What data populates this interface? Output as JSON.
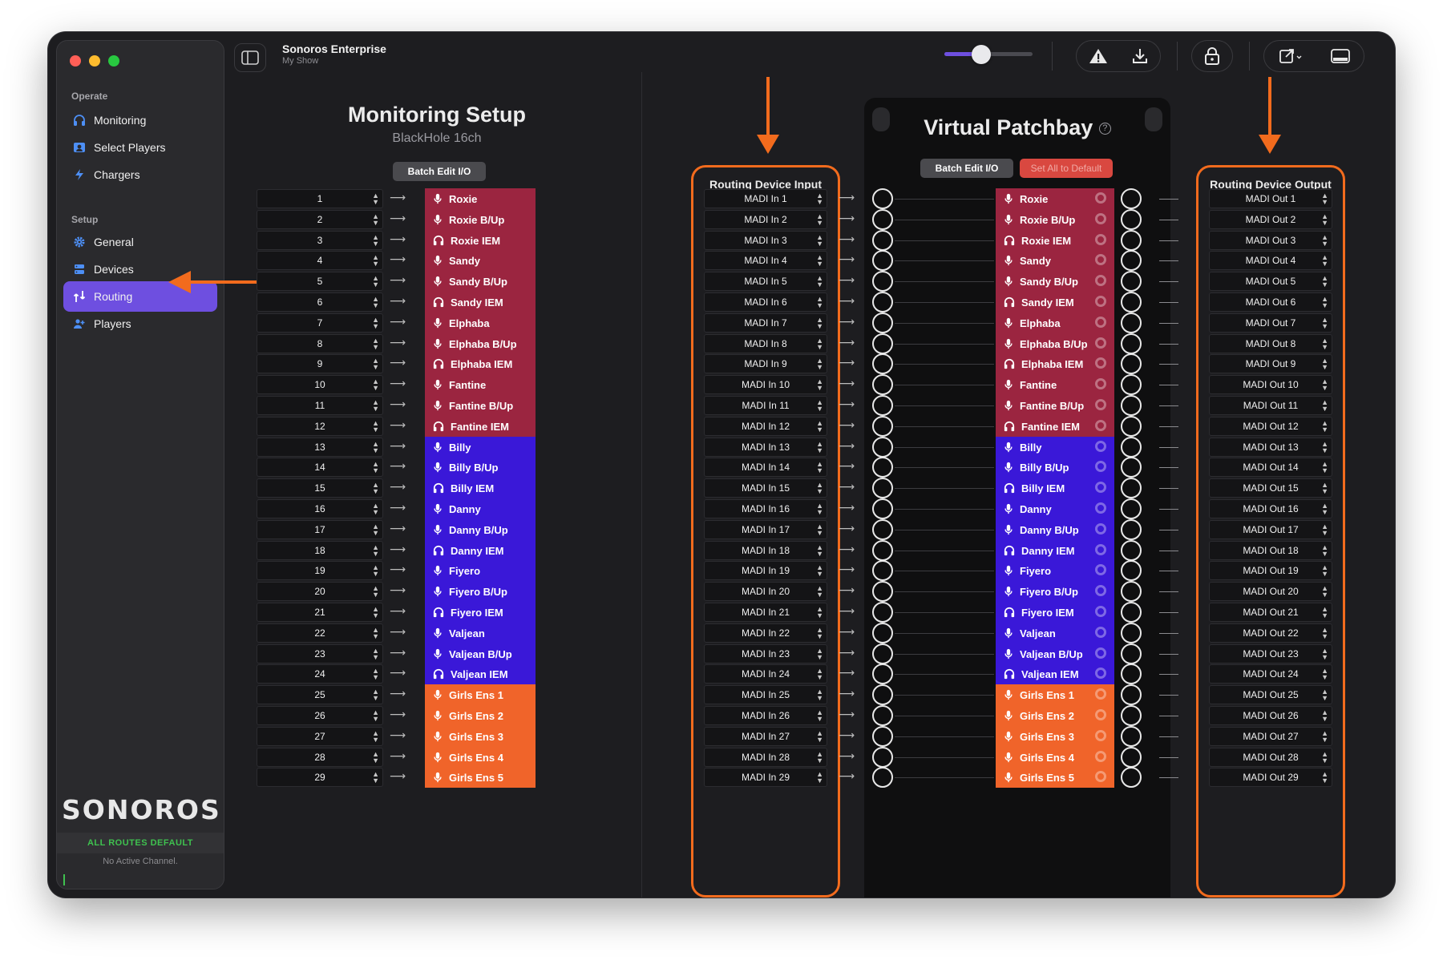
{
  "window": {
    "app_title": "Sonoros Enterprise",
    "app_subtitle": "My Show",
    "volume_level": 0.42
  },
  "sidebar": {
    "operate_title": "Operate",
    "setup_title": "Setup",
    "operate_items": [
      {
        "label": "Monitoring",
        "icon": "headphones-icon"
      },
      {
        "label": "Select Players",
        "icon": "person-card-icon"
      },
      {
        "label": "Chargers",
        "icon": "bolt-icon"
      }
    ],
    "setup_items": [
      {
        "label": "General",
        "icon": "gear-icon"
      },
      {
        "label": "Devices",
        "icon": "server-icon"
      },
      {
        "label": "Routing",
        "icon": "routing-icon",
        "active": true
      },
      {
        "label": "Players",
        "icon": "people-icon"
      }
    ],
    "logo_text": "SONOROS",
    "routes_status": "ALL ROUTES DEFAULT",
    "active_channel": "No Active Channel."
  },
  "monitoring": {
    "title": "Monitoring Setup",
    "subtitle": "BlackHole 16ch",
    "batch_button": "Batch Edit I/O"
  },
  "patchbay": {
    "title": "Virtual Patchbay",
    "batch_button": "Batch Edit I/O",
    "reset_button": "Set All to Default"
  },
  "routing_input": {
    "title": "Routing Device Input"
  },
  "routing_output": {
    "title": "Routing Device Output"
  },
  "colors": {
    "red": "#9b2540",
    "blue": "#3a18d8",
    "orange": "#f0642a",
    "accent": "#6e4fe0",
    "annotation": "#f26b1d"
  },
  "channels": [
    {
      "num": "1",
      "name": "Roxie",
      "type": "mic",
      "group": "red"
    },
    {
      "num": "2",
      "name": "Roxie B/Up",
      "type": "mic",
      "group": "red"
    },
    {
      "num": "3",
      "name": "Roxie IEM",
      "type": "iem",
      "group": "red"
    },
    {
      "num": "4",
      "name": "Sandy",
      "type": "mic",
      "group": "red"
    },
    {
      "num": "5",
      "name": "Sandy B/Up",
      "type": "mic",
      "group": "red"
    },
    {
      "num": "6",
      "name": "Sandy IEM",
      "type": "iem",
      "group": "red"
    },
    {
      "num": "7",
      "name": "Elphaba",
      "type": "mic",
      "group": "red"
    },
    {
      "num": "8",
      "name": "Elphaba B/Up",
      "type": "mic",
      "group": "red"
    },
    {
      "num": "9",
      "name": "Elphaba IEM",
      "type": "iem",
      "group": "red"
    },
    {
      "num": "10",
      "name": "Fantine",
      "type": "mic",
      "group": "red"
    },
    {
      "num": "11",
      "name": "Fantine B/Up",
      "type": "mic",
      "group": "red"
    },
    {
      "num": "12",
      "name": "Fantine IEM",
      "type": "iem",
      "group": "red"
    },
    {
      "num": "13",
      "name": "Billy",
      "type": "mic",
      "group": "blue"
    },
    {
      "num": "14",
      "name": "Billy B/Up",
      "type": "mic",
      "group": "blue"
    },
    {
      "num": "15",
      "name": "Billy IEM",
      "type": "iem",
      "group": "blue"
    },
    {
      "num": "16",
      "name": "Danny",
      "type": "mic",
      "group": "blue"
    },
    {
      "num": "17",
      "name": "Danny B/Up",
      "type": "mic",
      "group": "blue"
    },
    {
      "num": "18",
      "name": "Danny IEM",
      "type": "iem",
      "group": "blue"
    },
    {
      "num": "19",
      "name": "Fiyero",
      "type": "mic",
      "group": "blue"
    },
    {
      "num": "20",
      "name": "Fiyero B/Up",
      "type": "mic",
      "group": "blue"
    },
    {
      "num": "21",
      "name": "Fiyero IEM",
      "type": "iem",
      "group": "blue"
    },
    {
      "num": "22",
      "name": "Valjean",
      "type": "mic",
      "group": "blue"
    },
    {
      "num": "23",
      "name": "Valjean B/Up",
      "type": "mic",
      "group": "blue"
    },
    {
      "num": "24",
      "name": "Valjean IEM",
      "type": "iem",
      "group": "blue"
    },
    {
      "num": "25",
      "name": "Girls Ens 1",
      "type": "mic",
      "group": "orange"
    },
    {
      "num": "26",
      "name": "Girls Ens 2",
      "type": "mic",
      "group": "orange"
    },
    {
      "num": "27",
      "name": "Girls Ens 3",
      "type": "mic",
      "group": "orange"
    },
    {
      "num": "28",
      "name": "Girls Ens 4",
      "type": "mic",
      "group": "orange"
    },
    {
      "num": "29",
      "name": "Girls Ens 5",
      "type": "mic",
      "group": "orange"
    }
  ],
  "madi_inputs": [
    "MADI In 1",
    "MADI In 2",
    "MADI In 3",
    "MADI In 4",
    "MADI In 5",
    "MADI In 6",
    "MADI In 7",
    "MADI In 8",
    "MADI In 9",
    "MADI In 10",
    "MADI In 11",
    "MADI In 12",
    "MADI In 13",
    "MADI In 14",
    "MADI In 15",
    "MADI In 16",
    "MADI In 17",
    "MADI In 18",
    "MADI In 19",
    "MADI In 20",
    "MADI In 21",
    "MADI In 22",
    "MADI In 23",
    "MADI In 24",
    "MADI In 25",
    "MADI In 26",
    "MADI In 27",
    "MADI In 28",
    "MADI In 29"
  ],
  "madi_outputs": [
    "MADI Out 1",
    "MADI Out 2",
    "MADI Out 3",
    "MADI Out 4",
    "MADI Out 5",
    "MADI Out 6",
    "MADI Out 7",
    "MADI Out 8",
    "MADI Out 9",
    "MADI Out 10",
    "MADI Out 11",
    "MADI Out 12",
    "MADI Out 13",
    "MADI Out 14",
    "MADI Out 15",
    "MADI Out 16",
    "MADI Out 17",
    "MADI Out 18",
    "MADI Out 19",
    "MADI Out 20",
    "MADI Out 21",
    "MADI Out 22",
    "MADI Out 23",
    "MADI Out 24",
    "MADI Out 25",
    "MADI Out 26",
    "MADI Out 27",
    "MADI Out 28",
    "MADI Out 29"
  ]
}
